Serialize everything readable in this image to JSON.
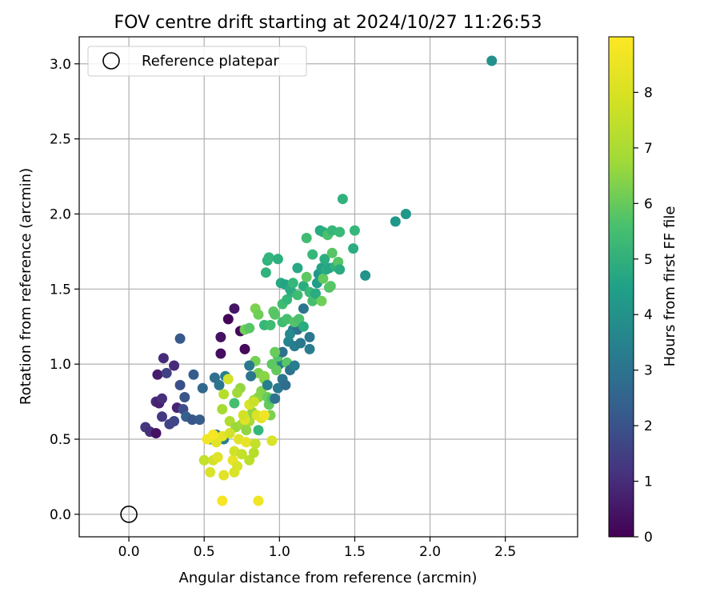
{
  "chart_data": {
    "type": "scatter",
    "title": "FOV centre drift starting at 2024/10/27 11:26:53",
    "xlabel": "Angular distance from reference (arcmin)",
    "ylabel": "Rotation from reference (arcmin)",
    "xlim": [
      -0.33,
      2.98
    ],
    "ylim": [
      -0.15,
      3.18
    ],
    "xticks": [
      0.0,
      0.5,
      1.0,
      1.5,
      2.0,
      2.5
    ],
    "xtick_labels": [
      "0.0",
      "0.5",
      "1.0",
      "1.5",
      "2.0",
      "2.5"
    ],
    "yticks": [
      0.0,
      0.5,
      1.0,
      1.5,
      2.0,
      2.5,
      3.0
    ],
    "ytick_labels": [
      "0.0",
      "0.5",
      "1.0",
      "1.5",
      "2.0",
      "2.5",
      "3.0"
    ],
    "grid": true,
    "legend": {
      "position": "top-left",
      "entries": [
        {
          "label": "Reference platepar",
          "marker": "open-circle"
        }
      ]
    },
    "reference_point": {
      "x": 0.0,
      "y": 0.0,
      "label": "Reference platepar"
    },
    "colorbar": {
      "label": "Hours from first FF file",
      "colormap": "viridis",
      "range": [
        0,
        9
      ],
      "ticks": [
        0,
        1,
        2,
        3,
        4,
        5,
        6,
        7,
        8
      ],
      "tick_labels": [
        "0",
        "1",
        "2",
        "3",
        "4",
        "5",
        "6",
        "7",
        "8"
      ]
    },
    "series": [
      {
        "points": [
          [
            0.11,
            0.58,
            1.4
          ],
          [
            0.14,
            0.55,
            1.2
          ],
          [
            0.18,
            0.54,
            0.4
          ],
          [
            0.18,
            0.75,
            1.1
          ],
          [
            0.2,
            0.74,
            0.8
          ],
          [
            0.22,
            0.77,
            1.2
          ],
          [
            0.19,
            0.93,
            0.7
          ],
          [
            0.23,
            1.04,
            1.1
          ],
          [
            0.25,
            0.94,
            1.7
          ],
          [
            0.3,
            0.99,
            1.1
          ],
          [
            0.22,
            0.65,
            1.5
          ],
          [
            0.27,
            0.6,
            1.8
          ],
          [
            0.3,
            0.62,
            1.9
          ],
          [
            0.32,
            0.71,
            0.9
          ],
          [
            0.34,
            0.86,
            2.2
          ],
          [
            0.36,
            0.7,
            2.1
          ],
          [
            0.37,
            0.78,
            2.4
          ],
          [
            0.38,
            0.65,
            2.7
          ],
          [
            0.42,
            0.63,
            2.4
          ],
          [
            0.47,
            0.63,
            2.6
          ],
          [
            0.43,
            0.93,
            2.6
          ],
          [
            0.49,
            0.84,
            3.0
          ],
          [
            0.34,
            1.17,
            2.5
          ],
          [
            0.61,
            1.18,
            0.4
          ],
          [
            0.61,
            1.07,
            0.3
          ],
          [
            0.66,
            1.3,
            0.1
          ],
          [
            0.7,
            1.37,
            0.5
          ],
          [
            0.74,
            1.22,
            0.2
          ],
          [
            0.77,
            1.1,
            0.2
          ],
          [
            0.57,
            0.91,
            3.3
          ],
          [
            0.6,
            0.86,
            3.5
          ],
          [
            0.64,
            0.92,
            3.9
          ],
          [
            0.66,
            0.9,
            8.4
          ],
          [
            0.7,
            0.74,
            6.3
          ],
          [
            0.54,
            0.5,
            3.6
          ],
          [
            0.58,
            0.53,
            3.4
          ],
          [
            0.63,
            0.5,
            4.0
          ],
          [
            0.74,
            0.84,
            7.5
          ],
          [
            0.72,
            0.81,
            7.7
          ],
          [
            0.62,
            0.7,
            7.8
          ],
          [
            0.63,
            0.8,
            8.0
          ],
          [
            0.67,
            0.62,
            7.9
          ],
          [
            0.71,
            0.58,
            7.6
          ],
          [
            0.75,
            0.6,
            7.7
          ],
          [
            0.78,
            0.56,
            7.5
          ],
          [
            0.8,
            0.62,
            7.8
          ],
          [
            0.82,
            0.68,
            7.5
          ],
          [
            0.83,
            0.76,
            7.6
          ],
          [
            0.86,
            0.78,
            7.4
          ],
          [
            0.88,
            0.82,
            7.3
          ],
          [
            0.9,
            0.9,
            7.2
          ],
          [
            0.92,
            0.78,
            6.9
          ],
          [
            0.93,
            0.73,
            6.8
          ],
          [
            0.94,
            0.66,
            7.2
          ],
          [
            0.95,
            0.77,
            6.4
          ],
          [
            0.86,
            0.56,
            6.0
          ],
          [
            0.84,
            1.02,
            7.1
          ],
          [
            0.86,
            0.94,
            7.2
          ],
          [
            0.9,
            0.92,
            7.4
          ],
          [
            0.81,
            0.92,
            3.5
          ],
          [
            0.8,
            0.99,
            3.6
          ],
          [
            0.92,
            0.86,
            3.9
          ],
          [
            0.97,
            0.77,
            3.4
          ],
          [
            0.99,
            0.84,
            3.6
          ],
          [
            1.02,
            0.9,
            3.5
          ],
          [
            1.04,
            0.86,
            3.2
          ],
          [
            1.0,
            1.0,
            3.8
          ],
          [
            0.99,
            1.05,
            6.5
          ],
          [
            1.05,
            1.01,
            6.6
          ],
          [
            1.07,
            0.96,
            3.4
          ],
          [
            1.1,
            0.99,
            3.8
          ],
          [
            1.02,
            1.08,
            3.3
          ],
          [
            1.06,
            1.15,
            4.1
          ],
          [
            1.1,
            1.12,
            3.8
          ],
          [
            1.14,
            1.14,
            3.6
          ],
          [
            1.2,
            1.1,
            3.8
          ],
          [
            1.2,
            1.18,
            3.6
          ],
          [
            1.09,
            1.23,
            4.0
          ],
          [
            1.12,
            1.23,
            3.4
          ],
          [
            1.07,
            1.2,
            4.3
          ],
          [
            0.97,
            1.08,
            6.9
          ],
          [
            0.95,
            1.0,
            6.7
          ],
          [
            0.98,
            0.96,
            6.8
          ],
          [
            1.02,
            1.28,
            6.2
          ],
          [
            1.05,
            1.3,
            6.3
          ],
          [
            1.1,
            1.28,
            6.5
          ],
          [
            1.13,
            1.3,
            6.4
          ],
          [
            1.16,
            1.37,
            3.5
          ],
          [
            1.16,
            1.25,
            5.5
          ],
          [
            0.77,
            1.23,
            7.0
          ],
          [
            0.8,
            1.24,
            6.6
          ],
          [
            0.84,
            1.37,
            7.2
          ],
          [
            0.86,
            1.33,
            7.0
          ],
          [
            0.9,
            1.26,
            6.0
          ],
          [
            0.94,
            1.26,
            6.2
          ],
          [
            0.96,
            1.35,
            6.7
          ],
          [
            0.97,
            1.33,
            6.6
          ],
          [
            1.02,
            1.4,
            6.2
          ],
          [
            1.05,
            1.43,
            6.0
          ],
          [
            1.08,
            1.48,
            5.8
          ],
          [
            1.01,
            1.54,
            5.4
          ],
          [
            1.04,
            1.53,
            5.2
          ],
          [
            1.07,
            1.5,
            5.5
          ],
          [
            1.09,
            1.54,
            6.0
          ],
          [
            1.12,
            1.46,
            6.2
          ],
          [
            1.12,
            1.64,
            5.4
          ],
          [
            1.16,
            1.52,
            5.6
          ],
          [
            1.18,
            1.58,
            6.7
          ],
          [
            1.2,
            1.48,
            6.1
          ],
          [
            1.22,
            1.42,
            6.3
          ],
          [
            1.24,
            1.47,
            5.5
          ],
          [
            1.25,
            1.54,
            5.0
          ],
          [
            1.26,
            1.6,
            4.7
          ],
          [
            1.28,
            1.64,
            5.2
          ],
          [
            1.29,
            1.57,
            6.8
          ],
          [
            1.31,
            1.63,
            5.5
          ],
          [
            1.33,
            1.51,
            6.5
          ],
          [
            1.34,
            1.52,
            6.6
          ],
          [
            1.28,
            1.42,
            7.0
          ],
          [
            1.3,
            1.7,
            5.6
          ],
          [
            1.33,
            1.64,
            5.3
          ],
          [
            1.35,
            1.74,
            6.6
          ],
          [
            1.37,
            1.65,
            5.8
          ],
          [
            1.39,
            1.68,
            6.6
          ],
          [
            1.4,
            1.63,
            5.5
          ],
          [
            0.91,
            1.61,
            5.8
          ],
          [
            0.92,
            1.69,
            5.8
          ],
          [
            0.93,
            1.71,
            5.9
          ],
          [
            0.99,
            1.7,
            5.7
          ],
          [
            1.18,
            1.84,
            6.2
          ],
          [
            1.22,
            1.73,
            6.0
          ],
          [
            1.27,
            1.89,
            5.4
          ],
          [
            1.29,
            1.88,
            5.6
          ],
          [
            1.32,
            1.86,
            6.4
          ],
          [
            1.35,
            1.89,
            6.0
          ],
          [
            1.4,
            1.88,
            6.1
          ],
          [
            1.42,
            2.1,
            5.8
          ],
          [
            1.5,
            1.89,
            6.0
          ],
          [
            1.49,
            1.77,
            5.6
          ],
          [
            1.57,
            1.59,
            4.6
          ],
          [
            1.77,
            1.95,
            4.8
          ],
          [
            1.84,
            2.0,
            4.8
          ],
          [
            2.41,
            3.02,
            4.5
          ],
          [
            0.5,
            0.36,
            8.2
          ],
          [
            0.54,
            0.28,
            8.5
          ],
          [
            0.56,
            0.36,
            8.4
          ],
          [
            0.59,
            0.38,
            8.6
          ],
          [
            0.58,
            0.48,
            8.6
          ],
          [
            0.62,
            0.52,
            8.7
          ],
          [
            0.63,
            0.26,
            8.6
          ],
          [
            0.62,
            0.09,
            8.9
          ],
          [
            0.67,
            0.54,
            8.4
          ],
          [
            0.69,
            0.36,
            8.7
          ],
          [
            0.7,
            0.42,
            8.4
          ],
          [
            0.7,
            0.28,
            8.5
          ],
          [
            0.72,
            0.32,
            8.5
          ],
          [
            0.73,
            0.5,
            8.6
          ],
          [
            0.75,
            0.4,
            8.2
          ],
          [
            0.77,
            0.63,
            8.6
          ],
          [
            0.78,
            0.48,
            8.7
          ],
          [
            0.8,
            0.36,
            8.1
          ],
          [
            0.83,
            0.41,
            8.0
          ],
          [
            0.84,
            0.47,
            8.2
          ],
          [
            0.85,
            0.66,
            8.5
          ],
          [
            0.86,
            0.09,
            8.8
          ],
          [
            0.88,
            0.64,
            8.6
          ],
          [
            0.9,
            0.66,
            8.8
          ],
          [
            0.95,
            0.49,
            8.5
          ],
          [
            0.8,
            0.73,
            8.5
          ],
          [
            0.83,
            0.75,
            8.3
          ],
          [
            0.76,
            0.66,
            8.4
          ],
          [
            0.52,
            0.5,
            8.8
          ],
          [
            0.56,
            0.53,
            8.9
          ]
        ]
      }
    ]
  }
}
